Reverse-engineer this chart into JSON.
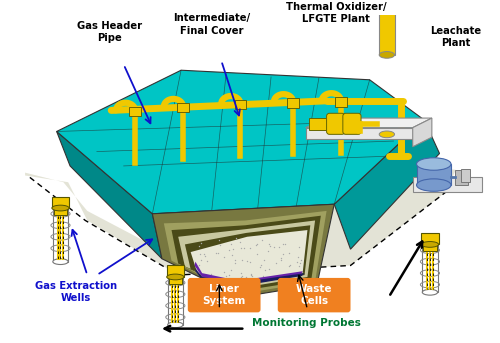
{
  "bg_color": "#ffffff",
  "teal": "#00C5C5",
  "teal_dark": "#009999",
  "teal_side": "#008888",
  "yellow": "#F0C800",
  "yellow_dark": "#C8A800",
  "orange_label": "#F08020",
  "blue_label": "#1010CC",
  "green_label": "#007733",
  "purple": "#6622AA",
  "olive_dark": "#4a4a18",
  "olive_mid": "#787840",
  "olive_light": "#a0a060",
  "gray_ground": "#c8c8b8",
  "gray_cut": "#a8a880",
  "white_waste": "#e8e8d8",
  "blue_tank": "#7799CC",
  "light_gray": "#d8d8d8",
  "labels": {
    "gas_header": "Gas Header\nPipe",
    "intermediate": "Intermediate/\nFinal Cover",
    "thermal": "Thermal Oxidizer/\nLFGTE Plant",
    "leachate": "Leachate\nPlant",
    "gas_extraction": "Gas Extraction\nWells",
    "liner": "Liner\nSystem",
    "waste": "Waste\nCells",
    "monitoring": "Monitoring Probes"
  }
}
